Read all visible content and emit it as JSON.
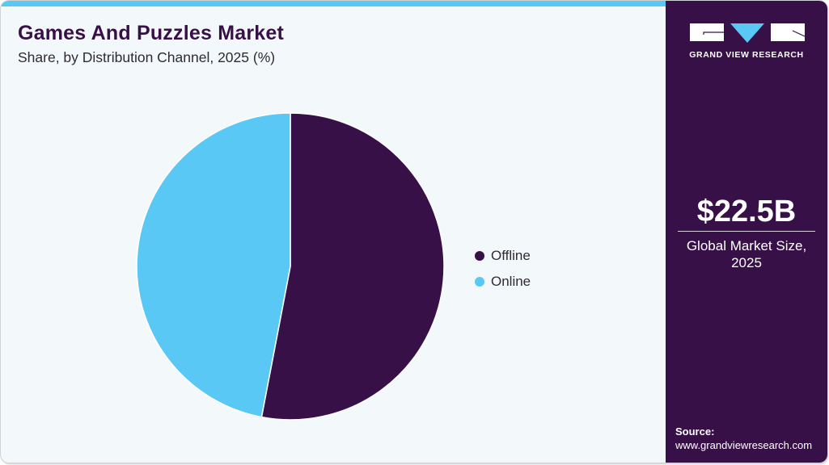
{
  "header": {
    "title": "Games And Puzzles Market",
    "subtitle": "Share, by Distribution Channel, 2025 (%)"
  },
  "legend": [
    {
      "label": "Offline",
      "color": "#381048"
    },
    {
      "label": "Online",
      "color": "#5ac8f5"
    }
  ],
  "sidebar": {
    "brand": "GRAND VIEW RESEARCH",
    "market_value": "$22.5B",
    "market_label_line1": "Global Market Size,",
    "market_label_line2": "2025",
    "source_label": "Source:",
    "source_url": "www.grandviewresearch.com"
  },
  "colors": {
    "accent": "#5ac8f5",
    "brand": "#381048",
    "background": "#f3f8fb"
  },
  "chart_data": {
    "type": "pie",
    "title": "Games And Puzzles Market",
    "subtitle": "Share, by Distribution Channel, 2025 (%)",
    "categories": [
      "Offline",
      "Online"
    ],
    "values": [
      53,
      47
    ],
    "colors": [
      "#381048",
      "#5ac8f5"
    ],
    "start_angle": "12 o'clock, clockwise",
    "legend_position": "right",
    "data_labels": false
  }
}
